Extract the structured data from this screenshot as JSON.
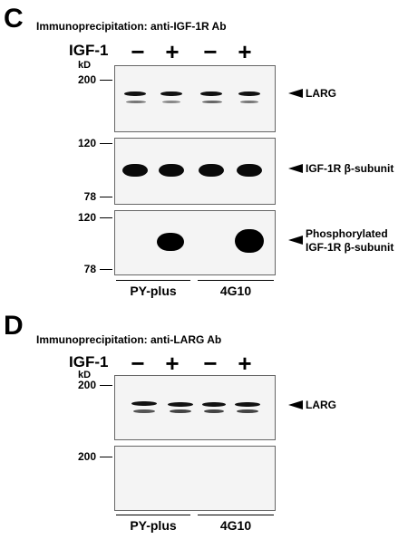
{
  "panel_c": {
    "letter": "C",
    "ip_title": "Immunoprecipitation: anti-IGF-1R Ab",
    "treatment_label": "IGF-1",
    "signs": [
      "−",
      "+",
      "−",
      "+"
    ],
    "kd_label": "kD",
    "blot1": {
      "markers": [
        "200"
      ],
      "band_label": "LARG"
    },
    "blot2": {
      "markers": [
        "120",
        "78"
      ],
      "band_label": "IGF-1R β-subunit"
    },
    "blot3": {
      "markers": [
        "120",
        "78"
      ],
      "band_label_line1": "Phosphorylated",
      "band_label_line2": "IGF-1R β-subunit"
    },
    "groups": [
      "PY-plus",
      "4G10"
    ]
  },
  "panel_d": {
    "letter": "D",
    "ip_title": "Immunoprecipitation: anti-LARG Ab",
    "treatment_label": "IGF-1",
    "signs": [
      "−",
      "+",
      "−",
      "+"
    ],
    "kd_label": "kD",
    "blot1": {
      "markers": [
        "200"
      ],
      "band_label": "LARG"
    },
    "blot2": {
      "markers": [
        "200"
      ]
    },
    "groups": [
      "PY-plus",
      "4G10"
    ]
  }
}
